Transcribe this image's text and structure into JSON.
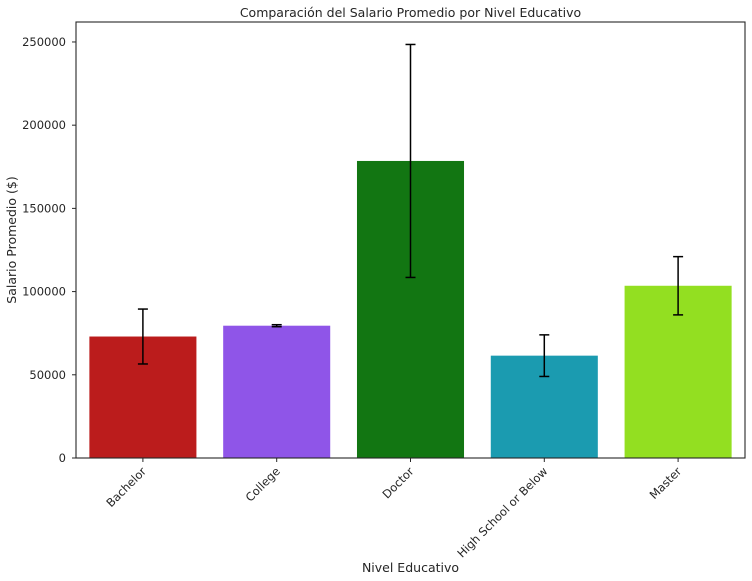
{
  "chart_data": {
    "type": "bar",
    "title": "Comparación del Salario Promedio por Nivel Educativo",
    "xlabel": "Nivel Educativo",
    "ylabel": "Salario Promedio ($)",
    "categories": [
      "Bachelor",
      "College",
      "Doctor",
      "High School or Below",
      "Master"
    ],
    "values": [
      73000,
      79500,
      178500,
      61500,
      103500
    ],
    "error": [
      16500,
      600,
      70000,
      12500,
      17500
    ],
    "colors": [
      "#bb1c1c",
      "#8f55e8",
      "#127612",
      "#1b9bb0",
      "#93df21"
    ],
    "ylim": [
      0,
      262000
    ],
    "yticks": [
      0,
      50000,
      100000,
      150000,
      200000,
      250000
    ],
    "ytick_labels": [
      "0",
      "50000",
      "100000",
      "150000",
      "200000",
      "250000"
    ],
    "grid": false,
    "legend": "none"
  }
}
